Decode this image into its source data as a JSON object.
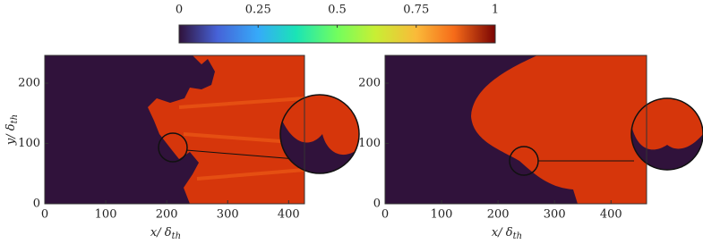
{
  "colorbar": {
    "lim": [
      0,
      1
    ],
    "ticks": [
      0,
      0.25,
      0.5,
      0.75,
      1
    ]
  },
  "chart_data": [
    {
      "type": "field",
      "xlim": [
        0,
        426
      ],
      "ylim": [
        0,
        246
      ],
      "xticks": [
        0,
        100,
        200,
        300,
        400
      ],
      "yticks": [
        0,
        100,
        200
      ],
      "xlabel": {
        "main": "x/ δ",
        "sub": "th"
      },
      "ylabel": {
        "main": "y/ δ",
        "sub": "th"
      }
    },
    {
      "type": "field",
      "xlim": [
        0,
        463
      ],
      "ylim": [
        0,
        246
      ],
      "xticks": [
        0,
        100,
        200,
        300,
        400
      ],
      "yticks": [
        0,
        100,
        200
      ],
      "xlabel": {
        "main": "x/ δ",
        "sub": "th"
      }
    }
  ]
}
